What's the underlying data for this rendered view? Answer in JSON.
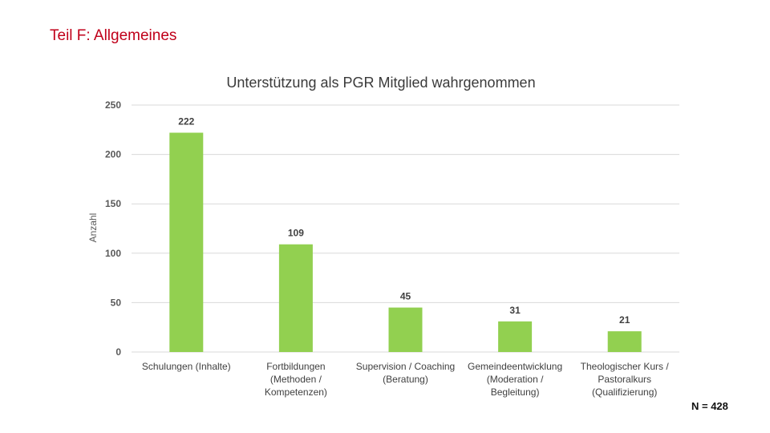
{
  "page_title": "Teil F: Allgemeines",
  "footnote": "N = 428",
  "colors": {
    "bar": "#92d050",
    "grid": "#d9d9d9",
    "title": "#c0001a"
  },
  "chart_data": {
    "type": "bar",
    "title": "Unterstützung als PGR Mitglied wahrgenommen",
    "xlabel": "",
    "ylabel": "Anzahl",
    "categories": [
      [
        "Schulungen (Inhalte)"
      ],
      [
        "Fortbildungen",
        "(Methoden /",
        "Kompetenzen)"
      ],
      [
        "Supervision / Coaching",
        "(Beratung)"
      ],
      [
        "Gemeindeentwicklung",
        "(Moderation /",
        "Begleitung)"
      ],
      [
        "Theologischer Kurs /",
        "Pastoralkurs",
        "(Qualifizierung)"
      ]
    ],
    "values": [
      222,
      109,
      45,
      31,
      21
    ],
    "ylim": [
      0,
      250
    ],
    "yticks": [
      0,
      50,
      100,
      150,
      200,
      250
    ],
    "grid": true
  }
}
